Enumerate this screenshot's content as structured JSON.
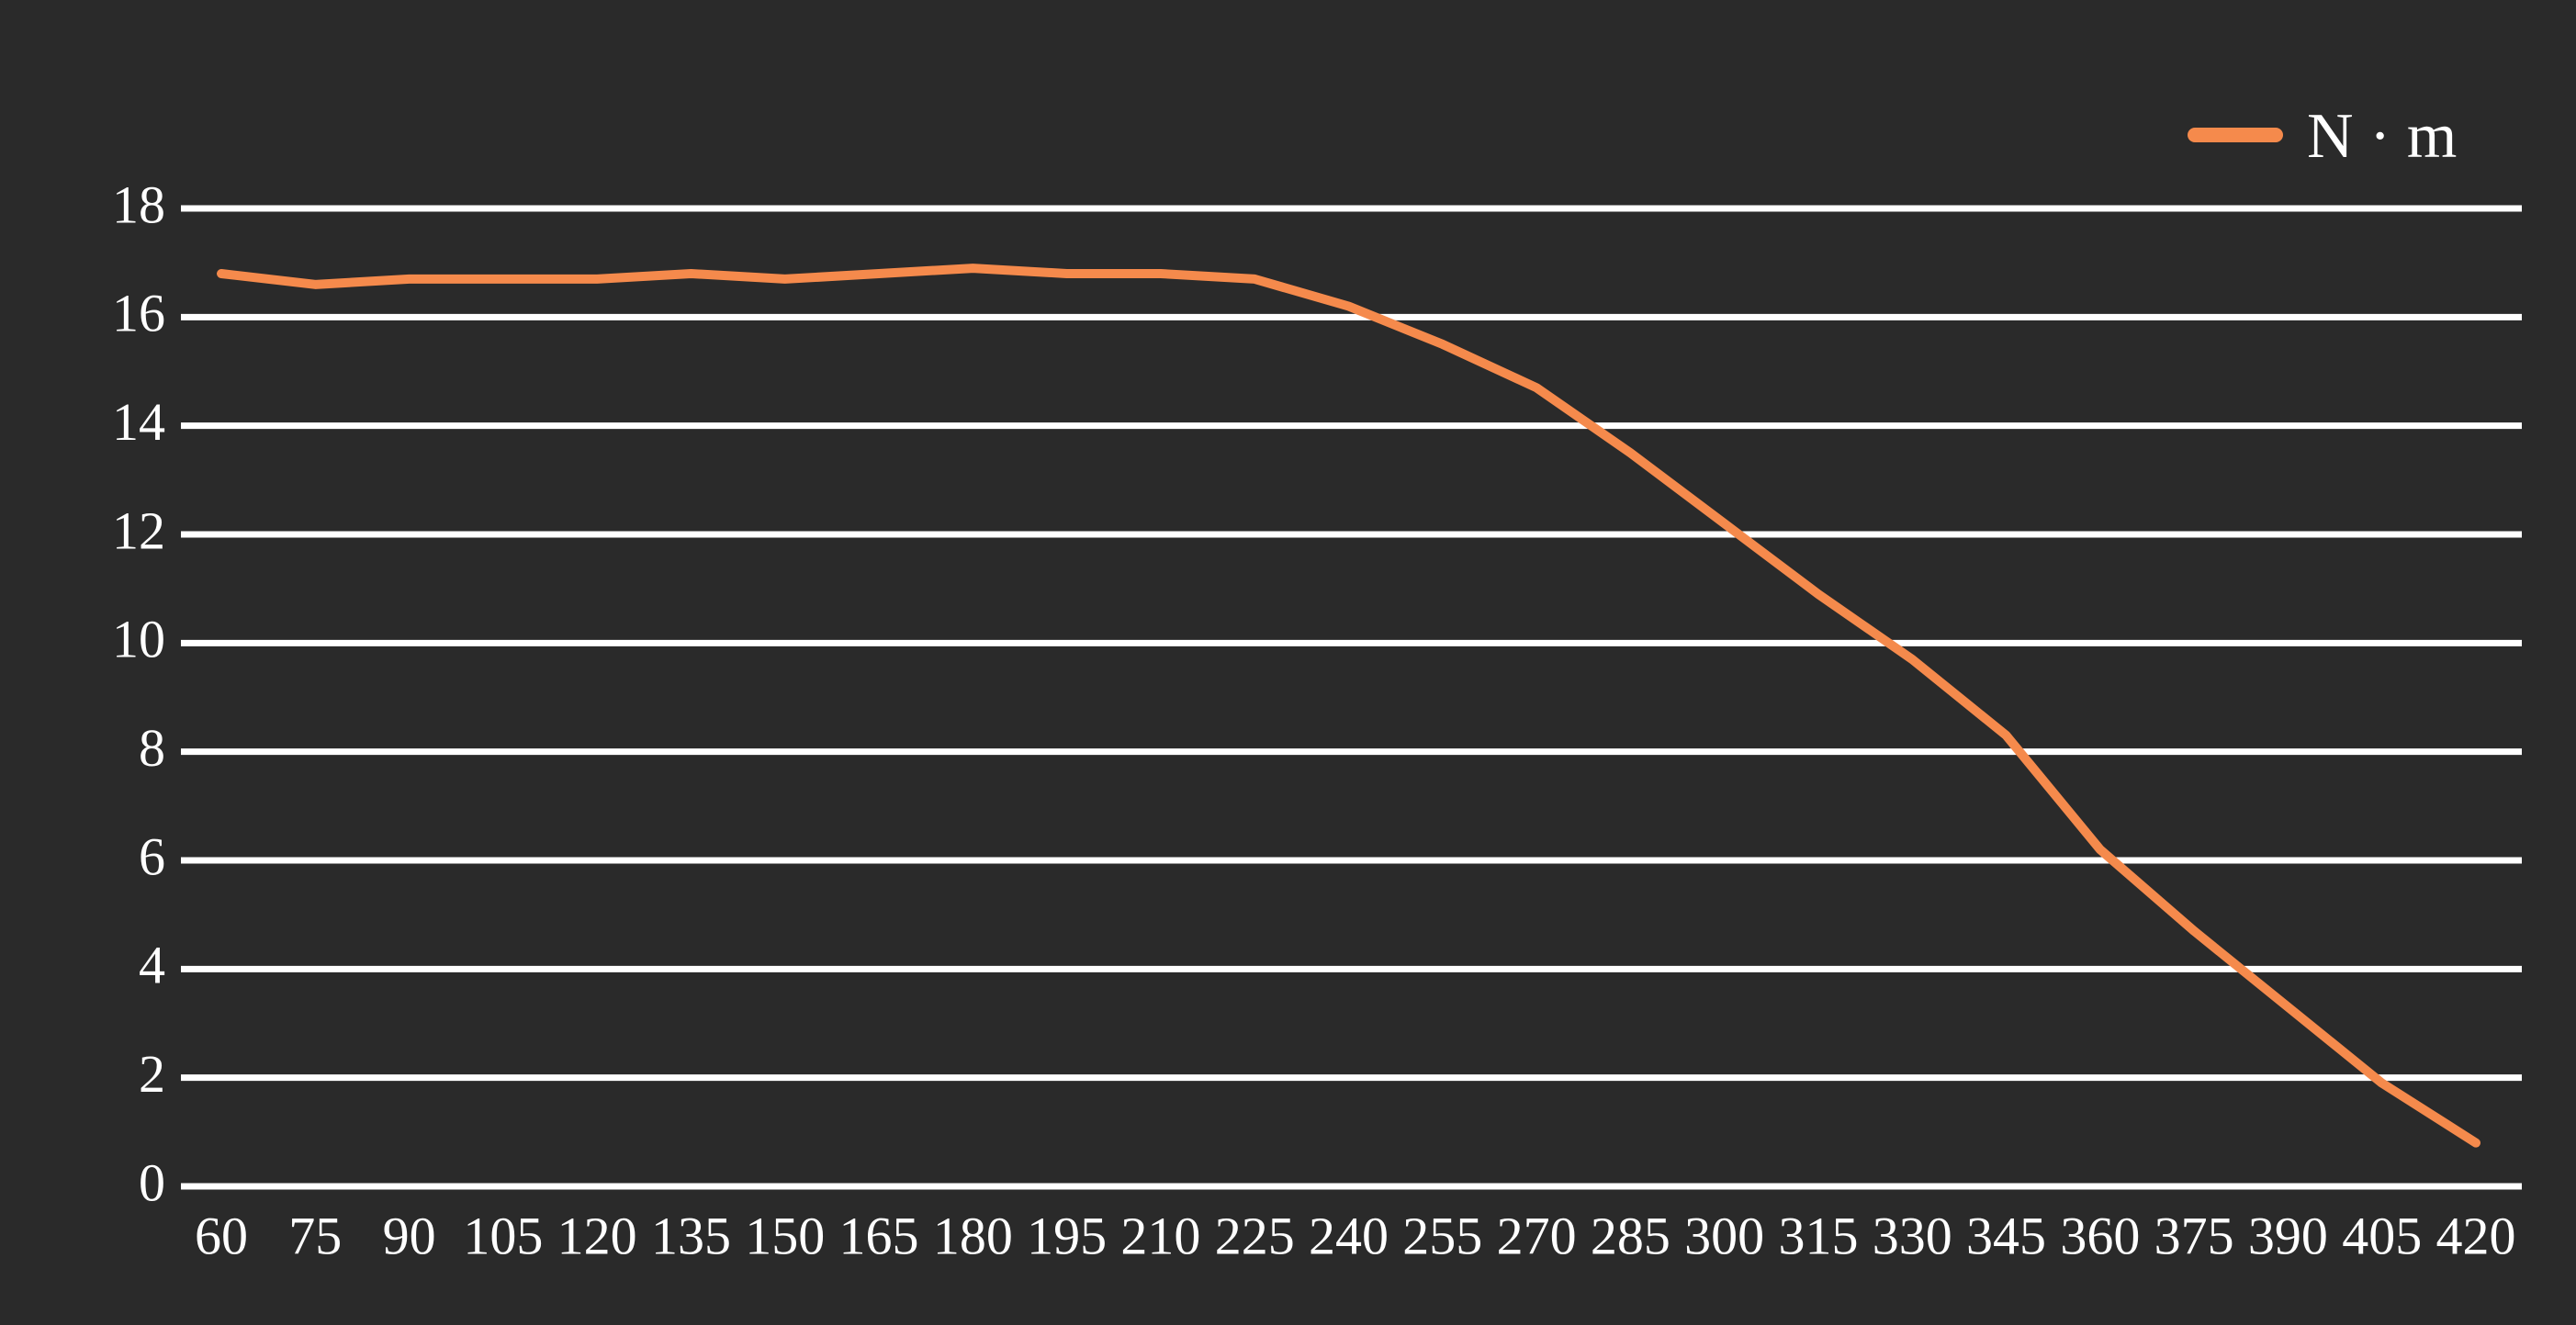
{
  "chart_data": {
    "type": "line",
    "categories": [
      60,
      75,
      90,
      105,
      120,
      135,
      150,
      165,
      180,
      195,
      210,
      225,
      240,
      255,
      270,
      285,
      300,
      315,
      330,
      345,
      360,
      375,
      390,
      405,
      420
    ],
    "series": [
      {
        "name": "N · m",
        "color": "#f58a4c",
        "values": [
          16.8,
          16.6,
          16.7,
          16.7,
          16.7,
          16.8,
          16.7,
          16.8,
          16.9,
          16.8,
          16.8,
          16.7,
          16.2,
          15.5,
          14.7,
          13.5,
          12.2,
          10.9,
          9.7,
          8.3,
          6.2,
          4.7,
          3.3,
          1.9,
          0.8
        ]
      }
    ],
    "ylim": [
      0,
      18
    ],
    "yticks": [
      0,
      2,
      4,
      6,
      8,
      10,
      12,
      14,
      16,
      18
    ],
    "grid": true,
    "legend": "top-right"
  }
}
